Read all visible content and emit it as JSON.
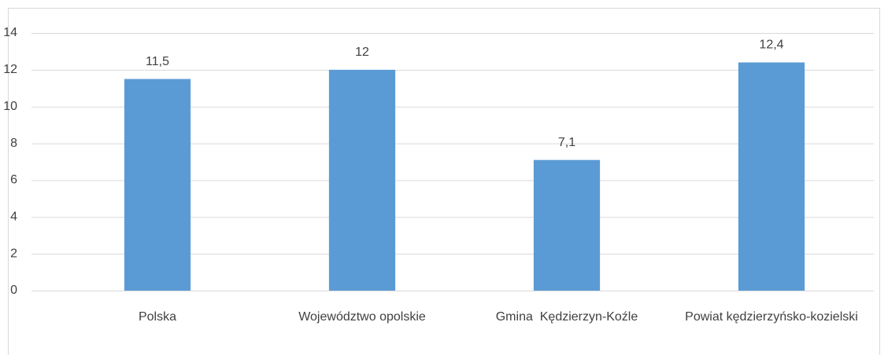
{
  "chart_data": {
    "type": "bar",
    "categories": [
      "Polska",
      "Województwo opolskie",
      "Gmina  Kędzierzyn-Koźle",
      "Powiat kędzierzyńsko-kozielski"
    ],
    "values": [
      11.5,
      12,
      7.1,
      12.4
    ],
    "value_labels": [
      "11,5",
      "12",
      "7,1",
      "12,4"
    ],
    "color": "#5b9bd5",
    "ylim": [
      0,
      14
    ],
    "yticks": [
      0,
      2,
      4,
      6,
      8,
      10,
      12,
      14
    ],
    "grid": true
  }
}
